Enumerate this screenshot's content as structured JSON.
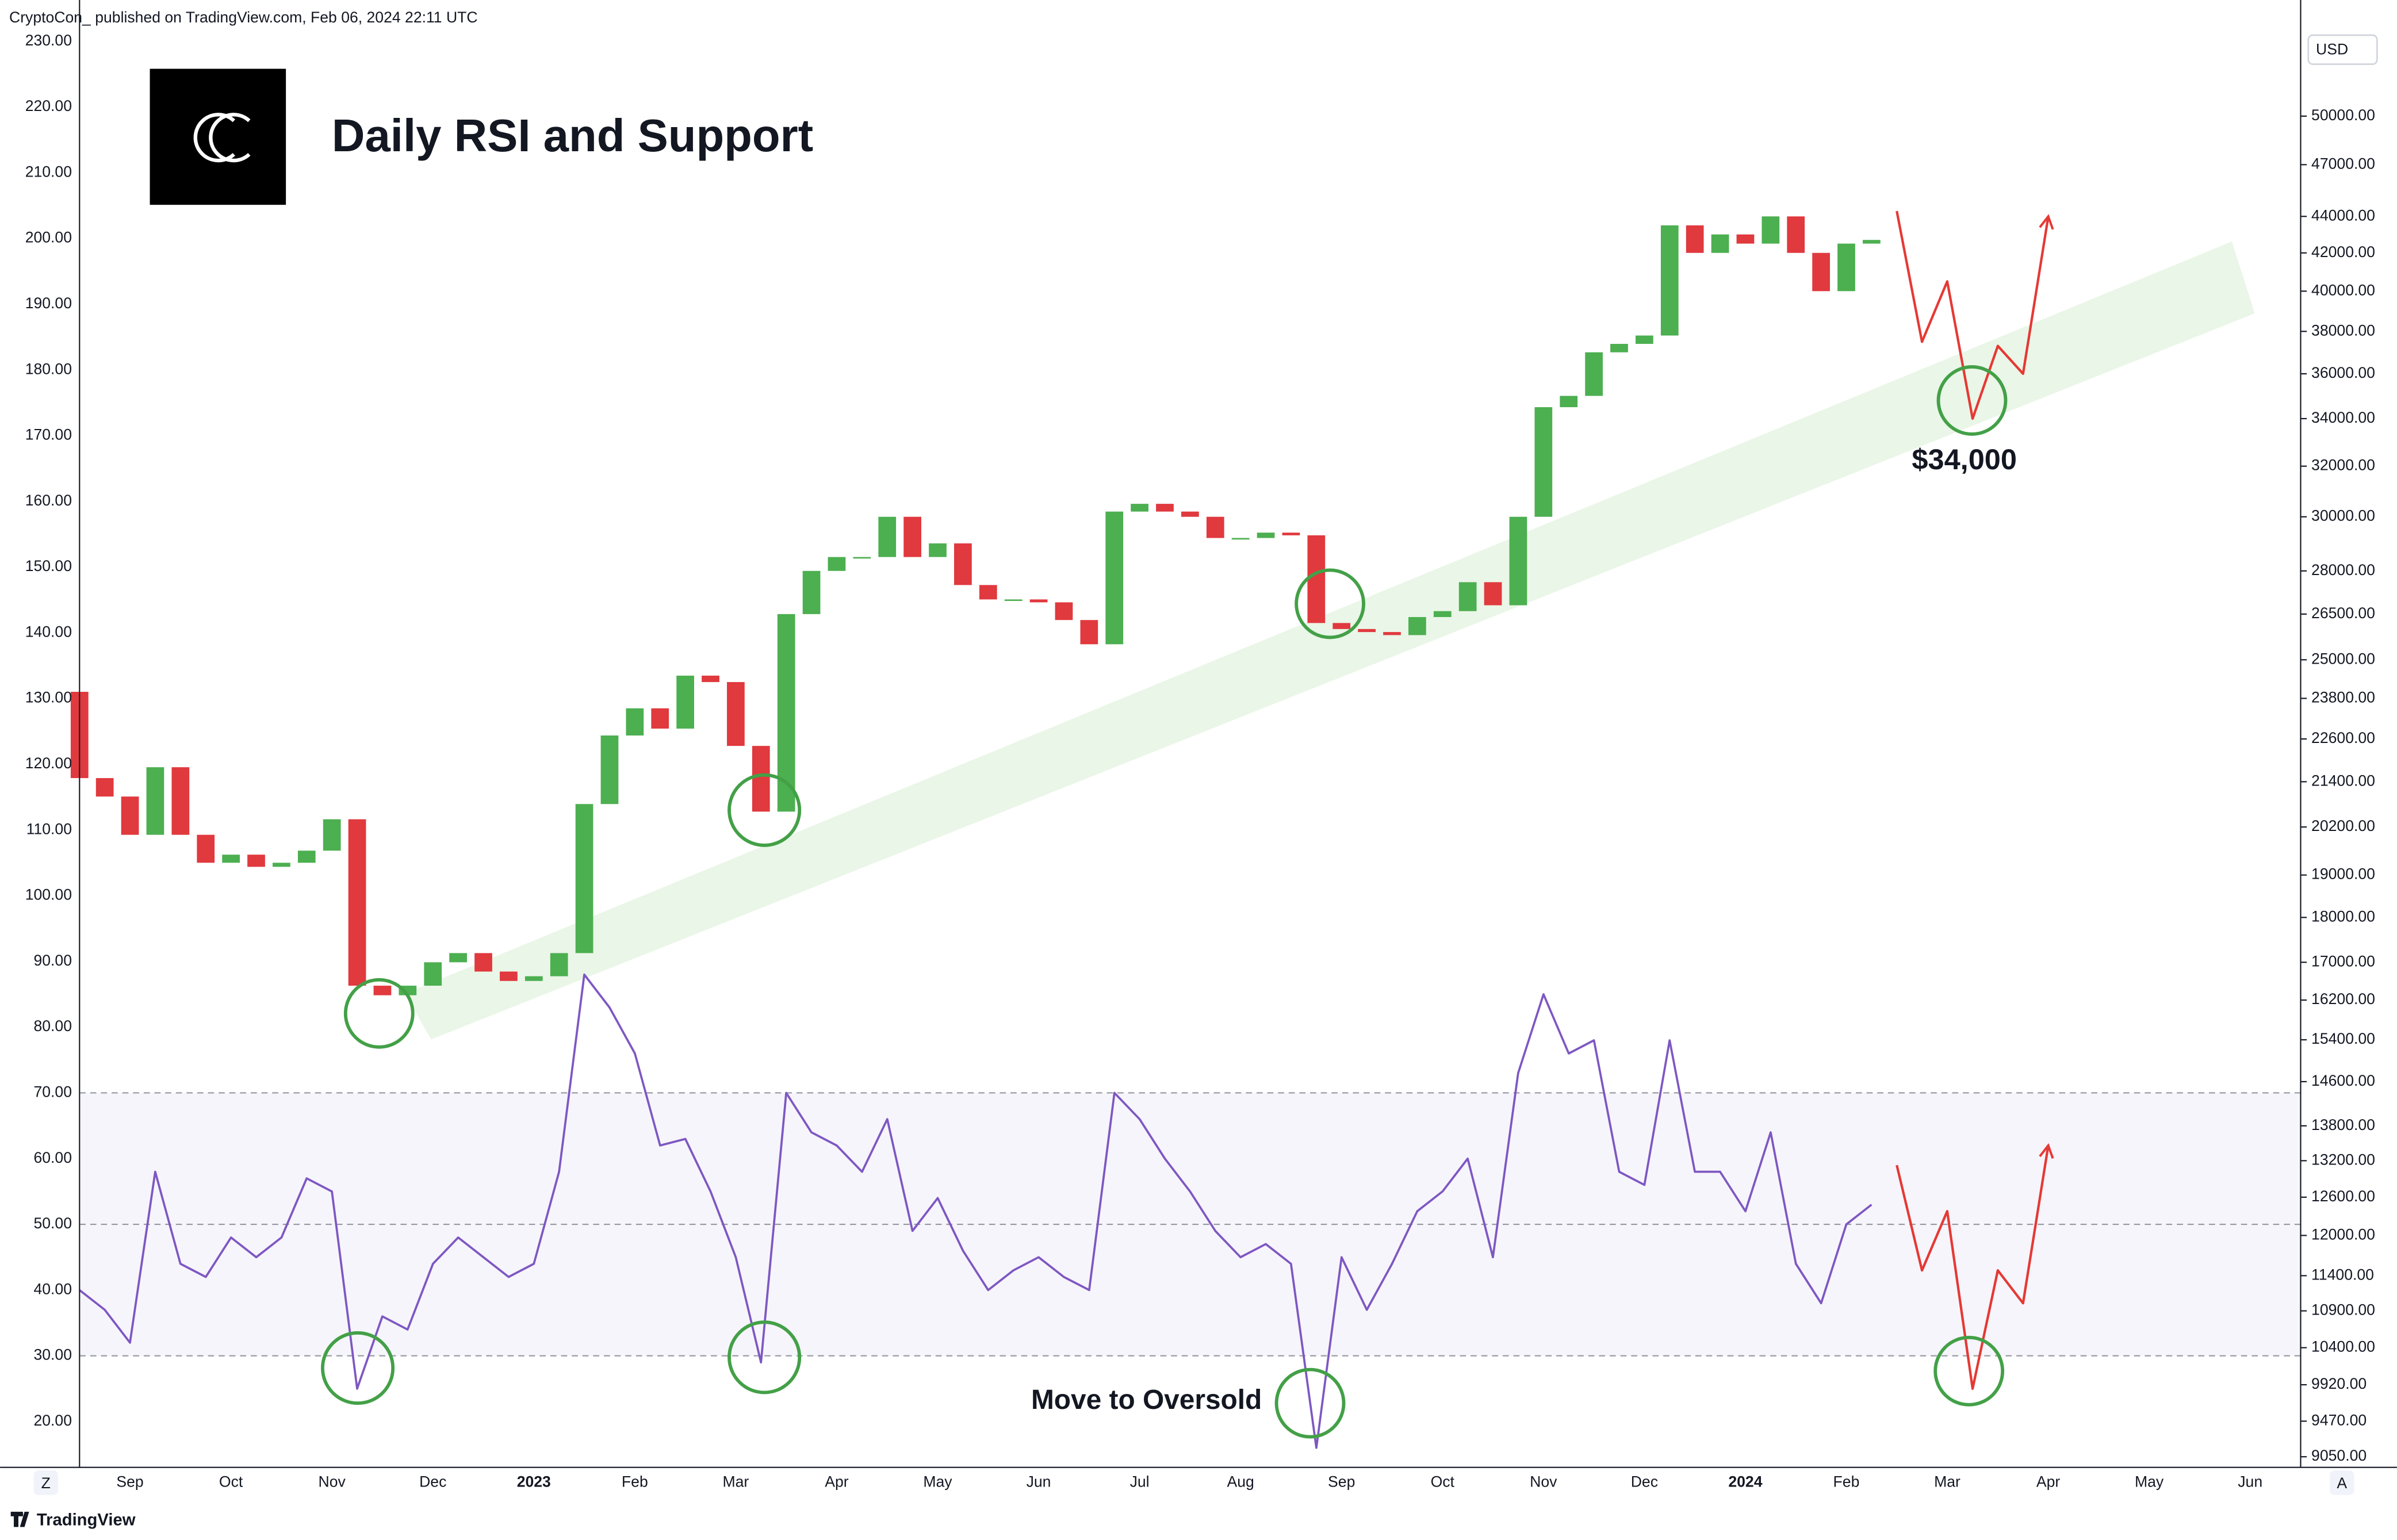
{
  "header": "CryptoCon_ published on TradingView.com, Feb 06, 2024 22:11 UTC",
  "footer": "TradingView",
  "buttons": {
    "left": "Z",
    "right": "A"
  },
  "chart_data": {
    "type": "candlestick",
    "title": "Daily RSI and Support",
    "currency": "USD",
    "annotations": [
      "$34,000",
      "Move to Oversold"
    ],
    "grid": false,
    "y2log": true,
    "color_up": "#4caf50",
    "color_down": "#e0393e",
    "categories": [
      null,
      null,
      "Sep",
      null,
      null,
      null,
      "Oct",
      null,
      null,
      null,
      "Nov",
      null,
      null,
      null,
      "Dec",
      null,
      null,
      null,
      "2023",
      null,
      null,
      null,
      "Feb",
      null,
      null,
      null,
      "Mar",
      null,
      null,
      null,
      "Apr",
      null,
      null,
      null,
      "May",
      null,
      null,
      null,
      "Jun",
      null,
      null,
      null,
      "Jul",
      null,
      null,
      null,
      "Aug",
      null,
      null,
      null,
      "Sep",
      null,
      null,
      null,
      "Oct",
      null,
      null,
      null,
      "Nov",
      null,
      null,
      null,
      "Dec",
      null,
      null,
      null,
      "2024",
      null,
      null,
      null,
      "Feb",
      null,
      null,
      null,
      "Mar",
      null,
      null,
      null,
      "Apr",
      null,
      null,
      null,
      "May",
      null,
      null,
      null,
      "Jun",
      null
    ],
    "open": [
      24000,
      21500,
      21000,
      20000,
      21800,
      20000,
      19300,
      19500,
      19200,
      19300,
      19600,
      20400,
      16500,
      16300,
      16500,
      17000,
      17200,
      16800,
      16600,
      16700,
      17200,
      20800,
      22700,
      23500,
      22900,
      24500,
      24300,
      22400,
      20600,
      26500,
      28000,
      28500,
      28500,
      30000,
      28500,
      29000,
      27500,
      27000,
      27000,
      26900,
      26300,
      25500,
      30200,
      30500,
      30200,
      30000,
      29200,
      29200,
      29400,
      29300,
      26200,
      26000,
      25900,
      25800,
      26400,
      26600,
      27600,
      26800,
      30000,
      34500,
      35000,
      37000,
      37400,
      37800,
      43500,
      42000,
      43000,
      42500,
      44000,
      42000,
      40000,
      42500,
      null,
      null,
      null,
      null,
      null,
      null,
      null,
      null,
      null,
      null,
      null,
      null,
      null,
      null,
      null,
      null
    ],
    "close": [
      21500,
      21000,
      20000,
      21800,
      20000,
      19300,
      19500,
      19200,
      19300,
      19600,
      20400,
      16500,
      16300,
      16500,
      17000,
      17200,
      16800,
      16600,
      16700,
      17200,
      20800,
      22700,
      23500,
      22900,
      24500,
      24300,
      22400,
      20600,
      26500,
      28000,
      28500,
      28500,
      30000,
      28500,
      29000,
      27500,
      27000,
      27000,
      26900,
      26300,
      25500,
      30200,
      30500,
      30200,
      30000,
      29200,
      29200,
      29400,
      29300,
      26200,
      26000,
      25900,
      25800,
      26400,
      26600,
      27600,
      26800,
      30000,
      34500,
      35000,
      37000,
      37400,
      37800,
      43500,
      42000,
      43000,
      42500,
      44000,
      42000,
      40000,
      42500,
      42700,
      null,
      null,
      null,
      null,
      null,
      null,
      null,
      null,
      null,
      null,
      null,
      null,
      null,
      null,
      null,
      null
    ],
    "projection": {
      "color": "#e53935",
      "values": [
        null,
        null,
        null,
        null,
        null,
        null,
        null,
        null,
        null,
        null,
        null,
        null,
        null,
        null,
        null,
        null,
        null,
        null,
        null,
        null,
        null,
        null,
        null,
        null,
        null,
        null,
        null,
        null,
        null,
        null,
        null,
        null,
        null,
        null,
        null,
        null,
        null,
        null,
        null,
        null,
        null,
        null,
        null,
        null,
        null,
        null,
        null,
        null,
        null,
        null,
        null,
        null,
        null,
        null,
        null,
        null,
        null,
        null,
        null,
        null,
        null,
        null,
        null,
        null,
        null,
        null,
        null,
        null,
        null,
        null,
        null,
        null,
        44300,
        37500,
        40500,
        34000,
        37300,
        36000,
        44000,
        null,
        null,
        null,
        null,
        null,
        null,
        null,
        null,
        null
      ]
    },
    "rsi": {
      "color": "#7e57c2",
      "values": [
        40,
        37,
        32,
        58,
        44,
        42,
        48,
        45,
        48,
        57,
        55,
        25,
        36,
        34,
        44,
        48,
        45,
        42,
        44,
        58,
        88,
        83,
        76,
        62,
        63,
        55,
        45,
        29,
        70,
        64,
        62,
        58,
        66,
        49,
        54,
        46,
        40,
        43,
        45,
        42,
        40,
        70,
        66,
        60,
        55,
        49,
        45,
        47,
        44,
        16,
        45,
        37,
        44,
        52,
        55,
        60,
        45,
        73,
        85,
        76,
        78,
        58,
        56,
        78,
        58,
        58,
        52,
        64,
        44,
        38,
        50,
        53,
        null,
        null,
        null,
        null,
        null,
        null,
        null,
        null,
        null,
        null,
        null,
        null,
        null,
        null,
        null,
        null
      ]
    },
    "rsi_projection": {
      "color": "#e53935",
      "values": [
        null,
        null,
        null,
        null,
        null,
        null,
        null,
        null,
        null,
        null,
        null,
        null,
        null,
        null,
        null,
        null,
        null,
        null,
        null,
        null,
        null,
        null,
        null,
        null,
        null,
        null,
        null,
        null,
        null,
        null,
        null,
        null,
        null,
        null,
        null,
        null,
        null,
        null,
        null,
        null,
        null,
        null,
        null,
        null,
        null,
        null,
        null,
        null,
        null,
        null,
        null,
        null,
        null,
        null,
        null,
        null,
        null,
        null,
        null,
        null,
        null,
        null,
        null,
        null,
        null,
        null,
        null,
        null,
        null,
        null,
        null,
        null,
        59,
        43,
        52,
        25,
        43,
        38,
        62,
        null,
        null,
        null,
        null,
        null,
        null,
        null,
        null,
        null
      ]
    },
    "rsi_levels": [
      30,
      50,
      70
    ],
    "ylim": [
      13.02,
      236.28
    ],
    "yticks": [
      {
        "value": 20,
        "label": "20.00"
      },
      {
        "value": 30,
        "label": "30.00"
      },
      {
        "value": 40,
        "label": "40.00"
      },
      {
        "value": 50,
        "label": "50.00"
      },
      {
        "value": 60,
        "label": "60.00"
      },
      {
        "value": 70,
        "label": "70.00"
      },
      {
        "value": 80,
        "label": "80.00"
      },
      {
        "value": 90,
        "label": "90.00"
      },
      {
        "value": 100,
        "label": "100.00"
      },
      {
        "value": 110,
        "label": "110.00"
      },
      {
        "value": 120,
        "label": "120.00"
      },
      {
        "value": 130,
        "label": "130.00"
      },
      {
        "value": 140,
        "label": "140.00"
      },
      {
        "value": 150,
        "label": "150.00"
      },
      {
        "value": 160,
        "label": "160.00"
      },
      {
        "value": 170,
        "label": "170.00"
      },
      {
        "value": 180,
        "label": "180.00"
      },
      {
        "value": 190,
        "label": "190.00"
      },
      {
        "value": 200,
        "label": "200.00"
      },
      {
        "value": 210,
        "label": "210.00"
      },
      {
        "value": 220,
        "label": "220.00"
      },
      {
        "value": 230,
        "label": "230.00"
      }
    ],
    "y2lim": [
      8928,
      57980
    ],
    "y2ticks": [
      {
        "value": 50000,
        "label": "50000.00"
      },
      {
        "value": 47000,
        "label": "47000.00"
      },
      {
        "value": 44000,
        "label": "44000.00"
      },
      {
        "value": 42000,
        "label": "42000.00"
      },
      {
        "value": 40000,
        "label": "40000.00"
      },
      {
        "value": 38000,
        "label": "38000.00"
      },
      {
        "value": 36000,
        "label": "36000.00"
      },
      {
        "value": 34000,
        "label": "34000.00"
      },
      {
        "value": 32000,
        "label": "32000.00"
      },
      {
        "value": 30000,
        "label": "30000.00"
      },
      {
        "value": 28000,
        "label": "28000.00"
      },
      {
        "value": 26500,
        "label": "26500.00"
      },
      {
        "value": 25000,
        "label": "25000.00"
      },
      {
        "value": 23800,
        "label": "23800.00"
      },
      {
        "value": 22600,
        "label": "22600.00"
      },
      {
        "value": 21400,
        "label": "21400.00"
      },
      {
        "value": 20200,
        "label": "20200.00"
      },
      {
        "value": 19000,
        "label": "19000.00"
      },
      {
        "value": 18000,
        "label": "18000.00"
      },
      {
        "value": 17000,
        "label": "17000.00"
      },
      {
        "value": 16200,
        "label": "16200.00"
      },
      {
        "value": 15400,
        "label": "15400.00"
      },
      {
        "value": 14600,
        "label": "14600.00"
      },
      {
        "value": 13800,
        "label": "13800.00"
      },
      {
        "value": 13200,
        "label": "13200.00"
      },
      {
        "value": 12600,
        "label": "12600.00"
      },
      {
        "value": 12000,
        "label": "12000.00"
      },
      {
        "value": 11400,
        "label": "11400.00"
      },
      {
        "value": 10900,
        "label": "10900.00"
      },
      {
        "value": 10400,
        "label": "10400.00"
      },
      {
        "value": 9920,
        "label": "9920.00"
      },
      {
        "value": 9470,
        "label": "9470.00"
      },
      {
        "value": 9050,
        "label": "9050.00"
      }
    ]
  }
}
